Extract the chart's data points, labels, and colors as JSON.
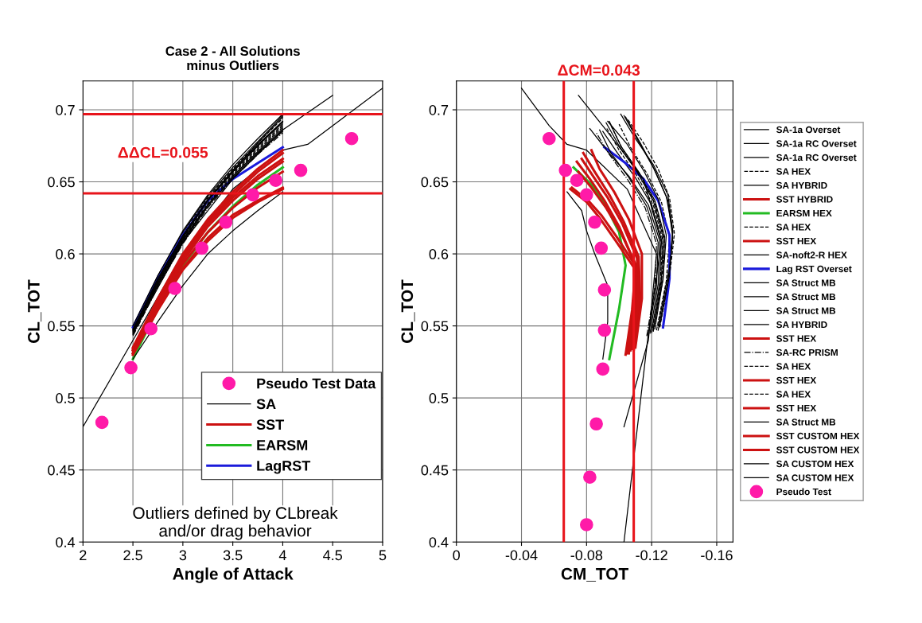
{
  "chart_data": [
    {
      "type": "line",
      "title": "Case 2 - All Solutions\nminus Outliers",
      "xlabel": "Angle of Attack",
      "ylabel": "CL_TOT",
      "xlim": [
        2,
        5
      ],
      "ylim": [
        0.4,
        0.72
      ],
      "xticks": [
        2,
        2.5,
        3,
        3.5,
        4,
        4.5,
        5
      ],
      "yticks": [
        0.4,
        0.45,
        0.5,
        0.55,
        0.6,
        0.65,
        0.7
      ],
      "grid": true,
      "legend": "bottom right",
      "marker": "none",
      "annotations": [
        "ΔΔCL=0.055",
        "Outliers defined by CLbreak\nand/or drag behavior"
      ],
      "ref_lines": [
        {
          "axis": "y",
          "value": 0.697,
          "color": "#e8141b"
        },
        {
          "axis": "y",
          "value": 0.642,
          "color": "#e8141b"
        }
      ],
      "x": [
        2.5,
        2.75,
        3,
        3.25,
        3.5,
        3.75,
        4
      ],
      "series": [
        {
          "name": "Pseudo Test Data",
          "type": "scatter",
          "marker": "circle",
          "color": "#ff1aa8",
          "x": [
            2.19,
            2.48,
            2.68,
            2.92,
            3.19,
            3.43,
            3.7,
            3.93,
            4.18,
            4.69
          ],
          "values": [
            0.483,
            0.521,
            0.548,
            0.576,
            0.604,
            0.622,
            0.641,
            0.651,
            0.658,
            0.68
          ]
        },
        {
          "name": "SA",
          "color": "#000000",
          "values": [
            0.548,
            0.582,
            0.612,
            0.637,
            0.657,
            0.675,
            0.692
          ]
        },
        {
          "color": "#000000",
          "x": [
            2,
            2.5,
            3,
            3.5,
            4,
            4.25,
            4.5,
            5
          ],
          "values": [
            0.48,
            0.54,
            0.6,
            0.645,
            0.672,
            0.676,
            0.689,
            0.715
          ]
        },
        {
          "color": "#000000",
          "values": [
            0.545,
            0.579,
            0.609,
            0.634,
            0.654,
            0.671,
            0.687
          ]
        },
        {
          "color": "#000000",
          "line_style": "dashed",
          "values": [
            0.547,
            0.581,
            0.611,
            0.636,
            0.656,
            0.674,
            0.69
          ]
        },
        {
          "color": "#000000",
          "values": [
            0.55,
            0.585,
            0.615,
            0.64,
            0.66,
            0.678,
            0.696
          ]
        },
        {
          "name": "SST",
          "color": "#cc1111",
          "values": [
            0.533,
            0.568,
            0.598,
            0.622,
            0.641,
            0.657,
            0.67
          ]
        },
        {
          "name": "EARSM",
          "color": "#22bb22",
          "values": [
            0.527,
            0.562,
            0.592,
            0.615,
            0.633,
            0.648,
            0.66
          ]
        },
        {
          "color": "#000000",
          "line_style": "dashed",
          "values": [
            0.549,
            0.584,
            0.614,
            0.639,
            0.659,
            0.677,
            0.694
          ]
        },
        {
          "color": "#cc1111",
          "values": [
            0.535,
            0.569,
            0.6,
            0.624,
            0.643,
            0.659,
            0.672
          ]
        },
        {
          "color": "#000000",
          "values": [
            0.546,
            0.58,
            0.61,
            0.634,
            0.653,
            0.67,
            0.685
          ]
        },
        {
          "name": "LagRST",
          "color": "#1a1adb",
          "values": [
            0.549,
            0.583,
            0.613,
            0.637,
            0.652,
            0.663,
            0.674
          ]
        },
        {
          "color": "#000000",
          "values": [
            0.548,
            0.583,
            0.613,
            0.638,
            0.658,
            0.676,
            0.692
          ]
        },
        {
          "color": "#000000",
          "x": [
            2.5,
            3,
            3.5,
            4,
            4.5
          ],
          "values": [
            0.545,
            0.608,
            0.652,
            0.686,
            0.71
          ]
        },
        {
          "color": "#000000",
          "values": [
            0.547,
            0.581,
            0.611,
            0.637,
            0.658,
            0.677,
            0.695
          ]
        },
        {
          "color": "#000000",
          "values": [
            0.544,
            0.578,
            0.608,
            0.633,
            0.653,
            0.67,
            0.686
          ]
        },
        {
          "color": "#cc1111",
          "values": [
            0.533,
            0.564,
            0.593,
            0.615,
            0.632,
            0.646,
            0.657
          ]
        },
        {
          "color": "#000000",
          "line_style": "dashdot",
          "values": [
            0.543,
            0.577,
            0.607,
            0.632,
            0.652,
            0.669,
            0.684
          ]
        },
        {
          "color": "#000000",
          "line_style": "dashed",
          "values": [
            0.546,
            0.58,
            0.61,
            0.635,
            0.655,
            0.673,
            0.689
          ]
        },
        {
          "color": "#cc1111",
          "values": [
            0.534,
            0.567,
            0.597,
            0.621,
            0.639,
            0.654,
            0.666
          ]
        },
        {
          "color": "#000000",
          "line_style": "dashed",
          "values": [
            0.545,
            0.579,
            0.609,
            0.634,
            0.654,
            0.672,
            0.688
          ]
        },
        {
          "color": "#cc1111",
          "values": [
            0.531,
            0.565,
            0.595,
            0.619,
            0.637,
            0.652,
            0.664
          ]
        },
        {
          "color": "#000000",
          "values": [
            0.547,
            0.582,
            0.612,
            0.637,
            0.657,
            0.675,
            0.691
          ]
        },
        {
          "color": "#cc1111",
          "values": [
            0.53,
            0.561,
            0.589,
            0.609,
            0.625,
            0.636,
            0.645
          ]
        },
        {
          "color": "#cc1111",
          "values": [
            0.531,
            0.562,
            0.59,
            0.611,
            0.627,
            0.637,
            0.646
          ]
        },
        {
          "color": "#000000",
          "values": [
            0.527,
            0.553,
            0.578,
            0.6,
            0.616,
            0.63,
            0.643
          ]
        },
        {
          "color": "#000000",
          "values": [
            0.55,
            0.585,
            0.616,
            0.641,
            0.662,
            0.68,
            0.697
          ]
        }
      ]
    },
    {
      "type": "line",
      "xlabel": "CM_TOT",
      "ylabel": "CL_TOT",
      "xlim": [
        0,
        -0.17
      ],
      "ylim": [
        0.4,
        0.72
      ],
      "xticks": [
        0,
        -0.04,
        -0.08,
        -0.12,
        -0.16
      ],
      "yticks": [
        0.4,
        0.45,
        0.5,
        0.55,
        0.6,
        0.65,
        0.7
      ],
      "grid": true,
      "legend": "right",
      "marker": "none",
      "annotations": [
        "ΔCM=0.043"
      ],
      "ref_lines": [
        {
          "axis": "x",
          "value": -0.066,
          "color": "#e8141b"
        },
        {
          "axis": "x",
          "value": -0.109,
          "color": "#e8141b"
        }
      ],
      "series": [
        {
          "name": "SA-1a Overset",
          "color": "#000000",
          "x": [
            -0.121,
            -0.127,
            -0.128,
            -0.122,
            -0.112,
            -0.101,
            -0.094
          ],
          "values": [
            0.548,
            0.582,
            0.612,
            0.637,
            0.657,
            0.675,
            0.692
          ]
        },
        {
          "name": "SA-1a RC Overset",
          "color": "#000000",
          "x": [
            -0.103,
            -0.118,
            -0.123,
            -0.105,
            -0.08,
            -0.068,
            -0.057,
            -0.04
          ],
          "values": [
            0.48,
            0.54,
            0.6,
            0.645,
            0.672,
            0.676,
            0.689,
            0.715
          ]
        },
        {
          "name": "SA-1a RC Overset",
          "color": "#000000",
          "x": [
            -0.119,
            -0.124,
            -0.125,
            -0.118,
            -0.106,
            -0.093,
            -0.082
          ],
          "values": [
            0.545,
            0.579,
            0.609,
            0.634,
            0.654,
            0.671,
            0.687
          ]
        },
        {
          "name": "SA HEX",
          "color": "#000000",
          "line_style": "dashed",
          "x": [
            -0.123,
            -0.129,
            -0.131,
            -0.126,
            -0.117,
            -0.107,
            -0.1
          ],
          "values": [
            0.547,
            0.581,
            0.611,
            0.636,
            0.656,
            0.674,
            0.69
          ]
        },
        {
          "name": "SA HYBRID",
          "color": "#000000",
          "x": [
            -0.124,
            -0.13,
            -0.133,
            -0.129,
            -0.121,
            -0.112,
            -0.103
          ],
          "values": [
            0.55,
            0.585,
            0.615,
            0.64,
            0.66,
            0.678,
            0.696
          ]
        },
        {
          "name": "SST HYBRID",
          "color": "#cc1111",
          "x": [
            -0.109,
            -0.113,
            -0.112,
            -0.103,
            -0.094,
            -0.085,
            -0.078
          ],
          "values": [
            0.533,
            0.568,
            0.598,
            0.622,
            0.641,
            0.657,
            0.67
          ]
        },
        {
          "name": "EARSM HEX",
          "color": "#22bb22",
          "x": [
            -0.094,
            -0.1,
            -0.104,
            -0.1,
            -0.092,
            -0.083,
            -0.072
          ],
          "values": [
            0.527,
            0.562,
            0.592,
            0.615,
            0.633,
            0.648,
            0.66
          ]
        },
        {
          "name": "SA HEX",
          "color": "#000000",
          "line_style": "dashed",
          "x": [
            -0.125,
            -0.131,
            -0.134,
            -0.131,
            -0.124,
            -0.115,
            -0.105
          ],
          "values": [
            0.549,
            0.584,
            0.614,
            0.639,
            0.659,
            0.677,
            0.694
          ]
        },
        {
          "name": "SST HEX",
          "color": "#cc1111",
          "x": [
            -0.11,
            -0.114,
            -0.114,
            -0.106,
            -0.097,
            -0.088,
            -0.083
          ],
          "values": [
            0.535,
            0.569,
            0.6,
            0.624,
            0.643,
            0.659,
            0.672
          ]
        },
        {
          "name": "SA-noft2-R HEX",
          "color": "#000000",
          "x": [
            -0.12,
            -0.125,
            -0.126,
            -0.12,
            -0.11,
            -0.099,
            -0.09
          ],
          "values": [
            0.546,
            0.58,
            0.61,
            0.634,
            0.653,
            0.67,
            0.685
          ]
        },
        {
          "name": "Lag RST Overset",
          "color": "#1a1adb",
          "x": [
            -0.127,
            -0.131,
            -0.131,
            -0.124,
            -0.115,
            -0.104,
            -0.091
          ],
          "values": [
            0.549,
            0.583,
            0.613,
            0.637,
            0.652,
            0.663,
            0.674
          ]
        },
        {
          "name": "SA Struct MB",
          "color": "#000000",
          "x": [
            -0.122,
            -0.127,
            -0.129,
            -0.124,
            -0.115,
            -0.105,
            -0.093
          ],
          "values": [
            0.548,
            0.583,
            0.613,
            0.638,
            0.658,
            0.676,
            0.692
          ]
        },
        {
          "name": "SA Struct MB",
          "color": "#000000",
          "x": [
            -0.103,
            -0.118,
            -0.126,
            -0.115,
            -0.092,
            -0.075
          ],
          "values": [
            0.4,
            0.545,
            0.608,
            0.652,
            0.686,
            0.71
          ]
        },
        {
          "name": "SA Struct MB",
          "color": "#000000",
          "x": [
            -0.124,
            -0.13,
            -0.133,
            -0.13,
            -0.122,
            -0.113,
            -0.104
          ],
          "values": [
            0.547,
            0.581,
            0.611,
            0.637,
            0.658,
            0.677,
            0.695
          ]
        },
        {
          "name": "SA HYBRID",
          "color": "#000000",
          "x": [
            -0.118,
            -0.123,
            -0.124,
            -0.117,
            -0.106,
            -0.095,
            -0.088
          ],
          "values": [
            0.544,
            0.578,
            0.608,
            0.633,
            0.653,
            0.67,
            0.686
          ]
        },
        {
          "name": "SST HEX",
          "color": "#cc1111",
          "x": [
            -0.107,
            -0.111,
            -0.11,
            -0.101,
            -0.092,
            -0.083,
            -0.075
          ],
          "values": [
            0.533,
            0.564,
            0.593,
            0.615,
            0.632,
            0.646,
            0.657
          ]
        },
        {
          "name": "SA-RC PRISM",
          "color": "#000000",
          "line_style": "dashdot",
          "x": [
            -0.117,
            -0.122,
            -0.123,
            -0.116,
            -0.105,
            -0.094,
            -0.086
          ],
          "values": [
            0.543,
            0.577,
            0.607,
            0.632,
            0.652,
            0.669,
            0.684
          ]
        },
        {
          "name": "SA HEX",
          "color": "#000000",
          "line_style": "dashed",
          "x": [
            -0.121,
            -0.126,
            -0.128,
            -0.122,
            -0.113,
            -0.102,
            -0.095
          ],
          "values": [
            0.546,
            0.58,
            0.61,
            0.635,
            0.655,
            0.673,
            0.689
          ]
        },
        {
          "name": "SST HEX",
          "color": "#cc1111",
          "x": [
            -0.108,
            -0.112,
            -0.111,
            -0.102,
            -0.093,
            -0.084,
            -0.077
          ],
          "values": [
            0.534,
            0.567,
            0.597,
            0.621,
            0.639,
            0.654,
            0.666
          ]
        },
        {
          "name": "SA HEX",
          "color": "#000000",
          "line_style": "dashed",
          "x": [
            -0.12,
            -0.125,
            -0.127,
            -0.121,
            -0.111,
            -0.1,
            -0.092
          ],
          "values": [
            0.545,
            0.579,
            0.609,
            0.634,
            0.654,
            0.672,
            0.688
          ]
        },
        {
          "name": "SST HEX",
          "color": "#cc1111",
          "x": [
            -0.106,
            -0.11,
            -0.109,
            -0.1,
            -0.091,
            -0.082,
            -0.074
          ],
          "values": [
            0.531,
            0.565,
            0.595,
            0.619,
            0.637,
            0.652,
            0.664
          ]
        },
        {
          "name": "SA Struct MB",
          "color": "#000000",
          "x": [
            -0.121,
            -0.126,
            -0.127,
            -0.121,
            -0.111,
            -0.1,
            -0.092
          ],
          "values": [
            0.547,
            0.582,
            0.612,
            0.637,
            0.657,
            0.675,
            0.691
          ]
        },
        {
          "name": "SST CUSTOM HEX",
          "color": "#cc1111",
          "x": [
            -0.104,
            -0.108,
            -0.11,
            -0.098,
            -0.088,
            -0.08,
            -0.07
          ],
          "values": [
            0.53,
            0.561,
            0.589,
            0.609,
            0.625,
            0.636,
            0.645
          ]
        },
        {
          "name": "SST CUSTOM HEX",
          "color": "#cc1111",
          "x": [
            -0.105,
            -0.109,
            -0.111,
            -0.099,
            -0.089,
            -0.081,
            -0.071
          ],
          "values": [
            0.531,
            0.562,
            0.59,
            0.611,
            0.627,
            0.637,
            0.646
          ]
        },
        {
          "name": "SA CUSTOM HEX",
          "color": "#000000",
          "x": [
            -0.09,
            -0.093,
            -0.093,
            -0.085,
            -0.08,
            -0.077,
            -0.068
          ],
          "values": [
            0.527,
            0.553,
            0.578,
            0.6,
            0.616,
            0.63,
            0.643
          ]
        },
        {
          "name": "SA CUSTOM HEX",
          "color": "#000000",
          "x": [
            -0.125,
            -0.131,
            -0.133,
            -0.13,
            -0.121,
            -0.11,
            -0.101
          ],
          "values": [
            0.55,
            0.585,
            0.616,
            0.641,
            0.662,
            0.68,
            0.697
          ]
        },
        {
          "name": "Pseudo Test",
          "type": "scatter",
          "marker": "circle",
          "color": "#ff1aa8",
          "x": [
            -0.057,
            -0.067,
            -0.074,
            -0.08,
            -0.085,
            -0.089,
            -0.091,
            -0.091,
            -0.09,
            -0.086,
            -0.082,
            -0.08
          ],
          "values": [
            0.68,
            0.658,
            0.651,
            0.641,
            0.622,
            0.604,
            0.575,
            0.547,
            0.52,
            0.482,
            0.445,
            0.412
          ]
        }
      ]
    }
  ]
}
